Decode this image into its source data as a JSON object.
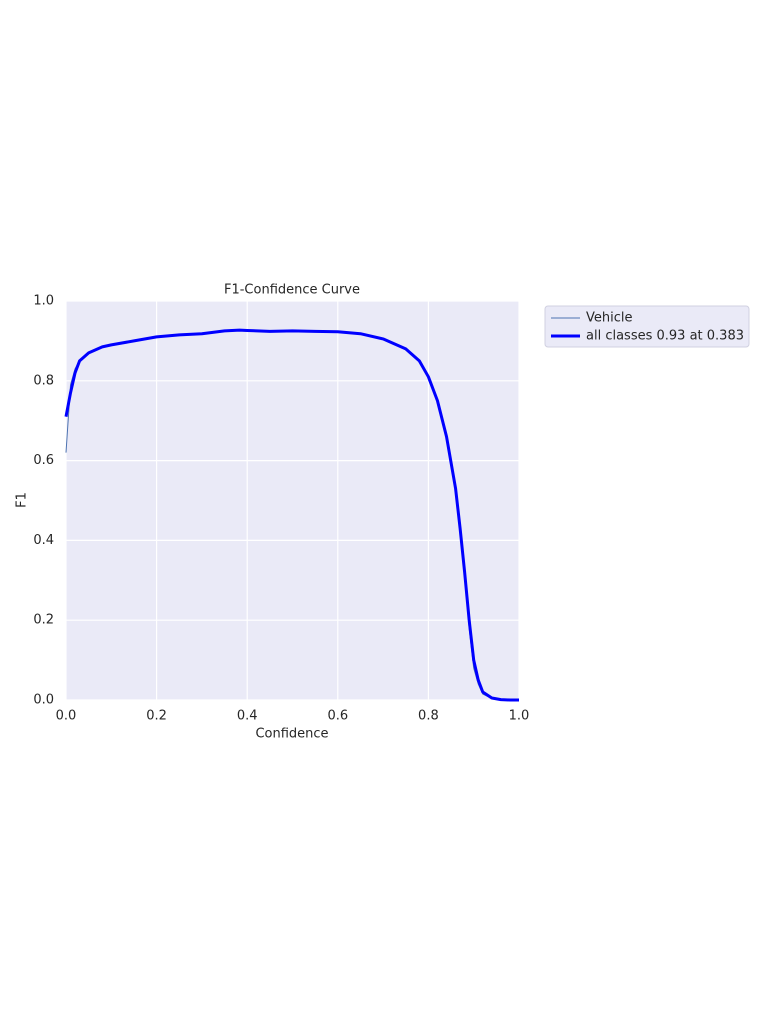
{
  "chart_data": {
    "type": "line",
    "title": "F1-Confidence Curve",
    "xlabel": "Confidence",
    "ylabel": "F1",
    "x": [
      0,
      0.01,
      0.02,
      0.03,
      0.05,
      0.08,
      0.1,
      0.15,
      0.2,
      0.25,
      0.3,
      0.35,
      0.383,
      0.4,
      0.45,
      0.5,
      0.55,
      0.6,
      0.65,
      0.7,
      0.75,
      0.78,
      0.8,
      0.82,
      0.84,
      0.86,
      0.87,
      0.88,
      0.89,
      0.9,
      0.91,
      0.92,
      0.94,
      0.96,
      0.98,
      1.0
    ],
    "series": [
      {
        "name": "Vehicle",
        "color": "#4c72b0",
        "width": 1,
        "values": [
          0.62,
          0.79,
          0.83,
          0.85,
          0.87,
          0.885,
          0.89,
          0.9,
          0.91,
          0.915,
          0.918,
          0.925,
          0.927,
          0.926,
          0.924,
          0.925,
          0.924,
          0.923,
          0.918,
          0.905,
          0.88,
          0.85,
          0.81,
          0.75,
          0.66,
          0.53,
          0.43,
          0.31,
          0.18,
          0.08,
          0.04,
          0.015,
          0.004,
          0.001,
          0,
          0
        ]
      },
      {
        "name": "all classes 0.93 at 0.383",
        "color": "#0000ff",
        "width": 3,
        "values": [
          0.71,
          0.77,
          0.82,
          0.85,
          0.87,
          0.885,
          0.89,
          0.9,
          0.91,
          0.915,
          0.918,
          0.925,
          0.927,
          0.926,
          0.924,
          0.925,
          0.924,
          0.923,
          0.918,
          0.905,
          0.88,
          0.85,
          0.81,
          0.75,
          0.66,
          0.53,
          0.43,
          0.32,
          0.2,
          0.1,
          0.05,
          0.02,
          0.005,
          0.001,
          0,
          0
        ]
      }
    ],
    "xlim": [
      0,
      1
    ],
    "ylim": [
      0,
      1
    ],
    "xticks": [
      {
        "value": 0,
        "label": "0.0"
      },
      0.2,
      0.4,
      0.6,
      0.8,
      {
        "value": 1,
        "label": "1.0"
      }
    ],
    "yticks": [
      {
        "value": 0,
        "label": "0.0"
      },
      0.2,
      0.4,
      0.6,
      0.8,
      {
        "value": 1,
        "label": "1.0"
      }
    ],
    "grid": true,
    "background": "#eaeaf7",
    "legend": "outside upper right"
  }
}
